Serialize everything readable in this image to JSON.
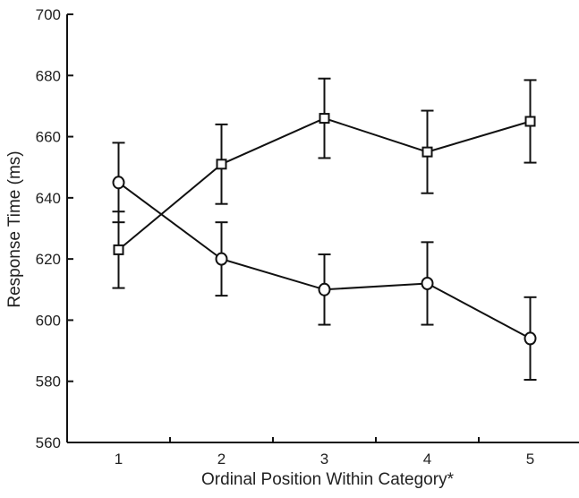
{
  "chart_data": {
    "type": "line",
    "title": "",
    "xlabel": "Ordinal Position Within Category*",
    "ylabel": "Response Time (ms)",
    "x": [
      1,
      2,
      3,
      4,
      5
    ],
    "xticks": [
      "1",
      "2",
      "3",
      "4",
      "5"
    ],
    "ylim": [
      560,
      700
    ],
    "yticks": [
      "560",
      "580",
      "600",
      "620",
      "640",
      "660",
      "680",
      "700"
    ],
    "grid": false,
    "legend": "none",
    "series": [
      {
        "marker": "square",
        "values": [
          623,
          651,
          666,
          655,
          665
        ],
        "error": [
          12.5,
          13,
          13,
          13.5,
          13.5
        ]
      },
      {
        "marker": "circle",
        "values": [
          645,
          620,
          610,
          612,
          594
        ],
        "error": [
          13,
          12,
          11.5,
          13.5,
          13.5
        ]
      }
    ],
    "colors": {
      "ink": "#111111",
      "marker_fill": "#ffffff"
    }
  }
}
